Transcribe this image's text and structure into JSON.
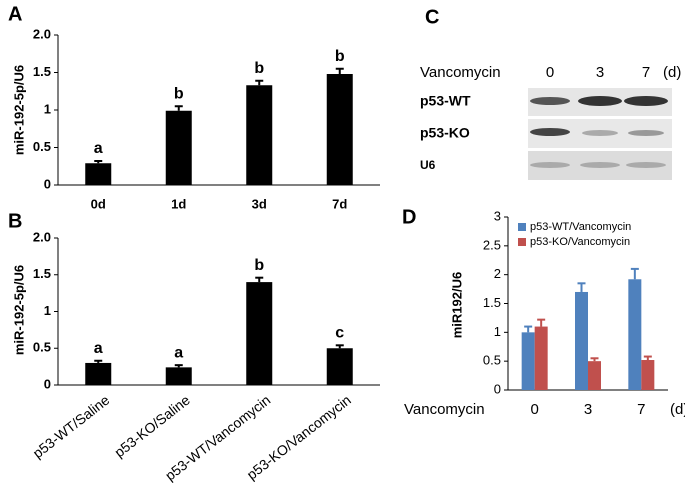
{
  "chart_data": [
    {
      "type": "bar",
      "label": "A",
      "ylabel": "miR-192-5p/U6",
      "categories": [
        "0d",
        "1d",
        "3d",
        "7d"
      ],
      "values": [
        0.29,
        0.99,
        1.33,
        1.48
      ],
      "errors": [
        0.03,
        0.06,
        0.06,
        0.07
      ],
      "annotations": [
        "a",
        "b",
        "b",
        "b"
      ],
      "color": "#000000",
      "ylim": [
        0,
        2
      ],
      "yticks": [
        0,
        0.5,
        1,
        1.5,
        {
          "value": 2,
          "label": "2.0"
        }
      ]
    },
    {
      "type": "bar",
      "label": "B",
      "ylabel": "miR-192-5p/U6",
      "categories": [
        "p53-WT/Saline",
        "p53-KO/Saline",
        "p53-WT/Vancomycin",
        "p53-KO/Vancomycin"
      ],
      "values": [
        0.3,
        0.24,
        1.4,
        0.5
      ],
      "errors": [
        0.03,
        0.03,
        0.06,
        0.04
      ],
      "annotations": [
        "a",
        "a",
        "b",
        "c"
      ],
      "color": "#000000",
      "ylim": [
        0,
        2
      ],
      "yticks": [
        0,
        0.5,
        1,
        1.5,
        {
          "value": 2,
          "label": "2.0"
        }
      ]
    },
    {
      "type": "blot",
      "label": "C",
      "treatment_label": "Vancomycin",
      "lanes": [
        "0",
        "3",
        "7"
      ],
      "unit": "(d)",
      "rows": [
        "p53-WT",
        "p53-KO",
        "U6"
      ]
    },
    {
      "type": "bar",
      "label": "D",
      "ylabel": "miR192/U6",
      "xlabel": "Vancomycin",
      "unit": "(d)",
      "categories": [
        "0",
        "3",
        "7"
      ],
      "series": [
        {
          "name": "p53-WT/Vancomycin",
          "color": "#4f81bd",
          "values": [
            1.0,
            1.7,
            1.92
          ],
          "errors": [
            0.1,
            0.15,
            0.18
          ]
        },
        {
          "name": "p53-KO/Vancomycin",
          "color": "#c0504d",
          "values": [
            1.1,
            0.5,
            0.52
          ],
          "errors": [
            0.12,
            0.05,
            0.06
          ]
        }
      ],
      "ylim": [
        0,
        3
      ],
      "yticks": [
        0,
        0.5,
        1,
        1.5,
        2,
        2.5,
        3
      ]
    }
  ]
}
